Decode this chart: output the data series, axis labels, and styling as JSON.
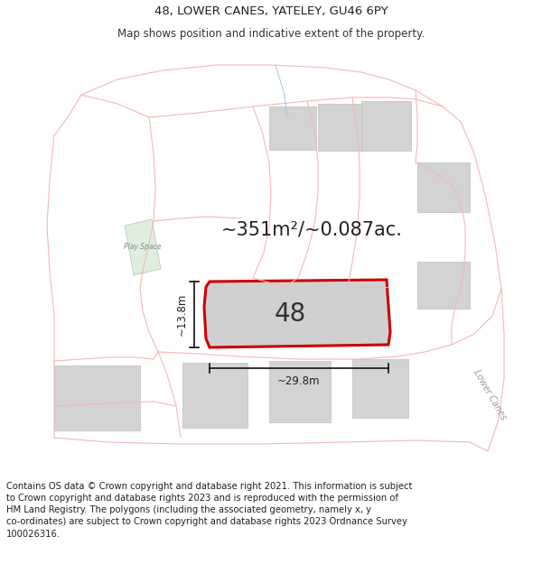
{
  "title": "48, LOWER CANES, YATELEY, GU46 6PY",
  "subtitle": "Map shows position and indicative extent of the property.",
  "footer": "Contains OS data © Crown copyright and database right 2021. This information is subject\nto Crown copyright and database rights 2023 and is reproduced with the permission of\nHM Land Registry. The polygons (including the associated geometry, namely x, y\nco-ordinates) are subject to Crown copyright and database rights 2023 Ordnance Survey\n100026316.",
  "area_text": "~351m²/~0.087ac.",
  "number_label": "48",
  "dim_width": "~29.8m",
  "dim_height": "~13.8m",
  "background_color": "#ffffff",
  "road_color": "#f5b8b8",
  "building_color": "#d3d3d3",
  "building_edge": "#c0c0c0",
  "green_color": "#ddeedd",
  "green_edge": "#bbccbb",
  "prop_edge": "#cc0000",
  "prop_fill": "#d0d0d0",
  "dim_color": "#111111",
  "label_color": "#555555",
  "text_color": "#222222",
  "title_fontsize": 9.5,
  "subtitle_fontsize": 8.5,
  "footer_fontsize": 7.2,
  "area_fontsize": 15,
  "num_fontsize": 20,
  "dim_fontsize": 8.5,
  "road_lw": 0.8,
  "prop_lw": 2.2
}
